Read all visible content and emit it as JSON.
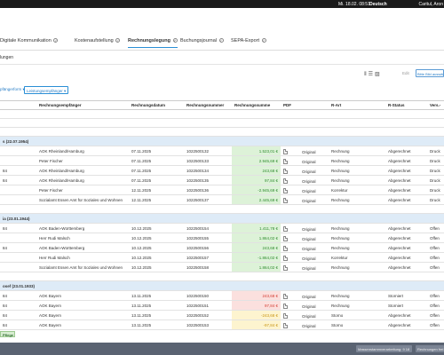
{
  "topbar": {
    "datetime": "Mi. 18.02. 08:51",
    "language": "Deutsch",
    "user": "Caritul, Aron"
  },
  "tabs": [
    {
      "label": "Digitale Kommunikation",
      "active": false
    },
    {
      "label": "Kostenaufstellung",
      "active": false
    },
    {
      "label": "Rechnungslegung",
      "active": true
    },
    {
      "label": "Buchungsjournal",
      "active": false
    },
    {
      "label": "SEPA-Export",
      "active": false
    }
  ],
  "subtitle": "lungen",
  "toolbar": {
    "edit_label": "Edit",
    "select_button": "Bitte Bild auswählen",
    "icons": [
      "columns-icon",
      "list-icon",
      "image-icon"
    ]
  },
  "filters": {
    "filter1": "pfängerform ▾",
    "filter2": "Leistungsempfänger ▾"
  },
  "table": {
    "headers": [
      "",
      "Rechnungsempfänger",
      "Rechnungsdatum",
      "Rechnungsnummer",
      "Rechnungssumme",
      "PDF",
      "R-Art",
      "R-Status",
      "Vers.-"
    ],
    "groups": [
      {
        "label": "s (22.07.1954)",
        "rows": [
          {
            "c0": "",
            "recipient": "AOK Rheinland/Hamburg",
            "date": "07.11.2025",
            "number": "1022500132",
            "sum": "1.523,01 €",
            "color": "green",
            "art": "Original",
            "type": "Rechnung",
            "status": "Abgerechnet",
            "vers": "Druck"
          },
          {
            "c0": "",
            "recipient": "Peter Fischer",
            "date": "07.11.2025",
            "number": "1022500133",
            "sum": "2.945,69 €",
            "color": "green",
            "art": "Original",
            "type": "Rechnung",
            "status": "Abgerechnet",
            "vers": "Druck"
          },
          {
            "c0": "84",
            "recipient": "AOK Rheinland/Hamburg",
            "date": "07.11.2025",
            "number": "1022500134",
            "sum": "243,68 €",
            "color": "green",
            "art": "Original",
            "type": "Rechnung",
            "status": "Abgerechnet",
            "vers": "Druck"
          },
          {
            "c0": "84",
            "recipient": "AOK Rheinland/Hamburg",
            "date": "07.11.2025",
            "number": "1022500135",
            "sum": "97,84 €",
            "color": "green",
            "art": "Original",
            "type": "Rechnung",
            "status": "Abgerechnet",
            "vers": "Druck"
          },
          {
            "c0": "",
            "recipient": "Peter Fischer",
            "date": "12.11.2025",
            "number": "1022500136",
            "sum": "-2.945,69 €",
            "color": "green",
            "art": "Original",
            "type": "Korrektur",
            "status": "Abgerechnet",
            "vers": "Druck"
          },
          {
            "c0": "",
            "recipient": "Sozialamt Essen Amt für Soziales und Wohnen",
            "date": "12.11.2025",
            "number": "1022500137",
            "sum": "2.445,69 €",
            "color": "green",
            "art": "Original",
            "type": "Rechnung",
            "status": "Abgerechnet",
            "vers": "Druck"
          }
        ]
      },
      {
        "label": "ia (23.01.1944)",
        "rows": [
          {
            "c0": "84",
            "recipient": "AOK Baden-Württemberg",
            "date": "10.12.2025",
            "number": "1022500154",
            "sum": "1.411,78 €",
            "color": "green",
            "art": "Original",
            "type": "Rechnung",
            "status": "Abgerechnet",
            "vers": "Offen"
          },
          {
            "c0": "",
            "recipient": "Herr Rudi Malsch",
            "date": "10.12.2025",
            "number": "1022500155",
            "sum": "1.864,02 €",
            "color": "green",
            "art": "Original",
            "type": "Rechnung",
            "status": "Abgerechnet",
            "vers": "Offen"
          },
          {
            "c0": "84",
            "recipient": "AOK Baden-Württemberg",
            "date": "10.12.2025",
            "number": "1022500156",
            "sum": "243,68 €",
            "color": "green",
            "art": "Original",
            "type": "Rechnung",
            "status": "Abgerechnet",
            "vers": "Offen"
          },
          {
            "c0": "",
            "recipient": "Herr Rudi Malsch",
            "date": "10.12.2025",
            "number": "1022500157",
            "sum": "-1.864,02 €",
            "color": "green",
            "art": "Original",
            "type": "Korrektur",
            "status": "Abgerechnet",
            "vers": "Offen"
          },
          {
            "c0": "",
            "recipient": "Sozialamt Essen Amt für Soziales und Wohnen",
            "date": "10.12.2025",
            "number": "1022500158",
            "sum": "1.864,02 €",
            "color": "green",
            "art": "Original",
            "type": "Rechnung",
            "status": "Abgerechnet",
            "vers": "Offen"
          }
        ]
      },
      {
        "label": "osef (23.01.1933)",
        "rows": [
          {
            "c0": "84",
            "recipient": "AOK Bayern",
            "date": "13.11.2025",
            "number": "1022500150",
            "sum": "243,68 €",
            "color": "pink",
            "art": "Original",
            "type": "Rechnung",
            "status": "Storniert",
            "vers": "Offen"
          },
          {
            "c0": "84",
            "recipient": "AOK Bayern",
            "date": "13.11.2025",
            "number": "1022500151",
            "sum": "97,84 €",
            "color": "pink",
            "art": "Original",
            "type": "Rechnung",
            "status": "Storniert",
            "vers": "Offen"
          },
          {
            "c0": "84",
            "recipient": "AOK Bayern",
            "date": "13.11.2025",
            "number": "1022500152",
            "sum": "-243,68 €",
            "color": "yellow",
            "art": "Original",
            "type": "Storno",
            "status": "Abgerechnet",
            "vers": "Offen"
          },
          {
            "c0": "84",
            "recipient": "AOK Bayern",
            "date": "13.11.2025",
            "number": "1022500153",
            "sum": "-97,84 €",
            "color": "yellow",
            "art": "Original",
            "type": "Storno",
            "status": "Abgerechnet",
            "vers": "Offen"
          }
        ]
      }
    ]
  },
  "pflege_badge": "Pflege",
  "bottombar": {
    "button1": "Massenstammverarbeitung: 9 18",
    "button2": "Rechnungen frei"
  }
}
